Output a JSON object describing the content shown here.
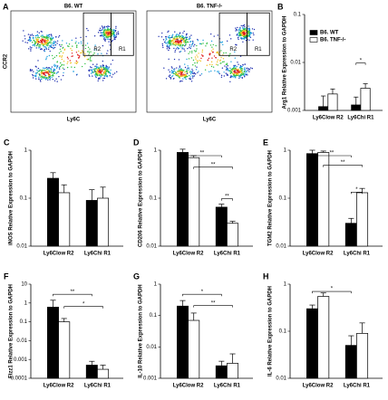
{
  "panel_a": {
    "label": "A",
    "plots": [
      {
        "title": "B6. WT"
      },
      {
        "title": "B6. TNF-/-"
      }
    ],
    "y_label": "CCR2",
    "x_label": "Ly6C",
    "gates": [
      "R2",
      "R1"
    ]
  },
  "chart_data": [
    {
      "type": "bar",
      "panel": "B",
      "y_label": "Arg1 Relative Expression to GAPDH",
      "categories": [
        "Ly6Clow R2",
        "Ly6Chi R1"
      ],
      "series": [
        {
          "name": "B6. WT",
          "color": "#000000",
          "values": [
            0.0012,
            0.0013
          ],
          "errors": [
            0.0008,
            0.0006
          ]
        },
        {
          "name": "B6. TNF-/-",
          "color": "#ffffff",
          "values": [
            0.0022,
            0.0029
          ],
          "errors": [
            0.0006,
            0.0007
          ]
        }
      ],
      "ylim": [
        0.001,
        0.1
      ],
      "yticks": [
        0.001,
        0.01,
        0.1
      ],
      "log_scale": true,
      "legend": "upper left",
      "annotations": [
        "*"
      ]
    },
    {
      "type": "bar",
      "panel": "C",
      "y_label": "iNOS Relative Expression to GAPDH",
      "categories": [
        "Ly6Clow R2",
        "Ly6Chi R1"
      ],
      "series": [
        {
          "color": "#000000",
          "values": [
            0.26,
            0.09
          ],
          "errors": [
            0.08,
            0.06
          ]
        },
        {
          "color": "#ffffff",
          "values": [
            0.13,
            0.1
          ],
          "errors": [
            0.06,
            0.07
          ]
        }
      ],
      "ylim": [
        0.01,
        1
      ],
      "yticks": [
        0.01,
        0.1,
        1
      ],
      "log_scale": true,
      "annotations": []
    },
    {
      "type": "bar",
      "panel": "D",
      "y_label": "CD206 Relative Expression to GAPDH",
      "categories": [
        "Ly6Clow R2",
        "Ly6Chi R1"
      ],
      "series": [
        {
          "color": "#000000",
          "values": [
            0.9,
            0.065
          ],
          "errors": [
            0.15,
            0.01
          ]
        },
        {
          "color": "#ffffff",
          "values": [
            0.7,
            0.03
          ],
          "errors": [
            0.07,
            0.003
          ]
        }
      ],
      "ylim": [
        0.01,
        1
      ],
      "yticks": [
        0.01,
        0.1,
        1
      ],
      "log_scale": true,
      "annotations": [
        "**",
        "**",
        "**"
      ]
    },
    {
      "type": "bar",
      "panel": "E",
      "y_label": "TGM2 Relative Expression to GAPDH",
      "categories": [
        "Ly6Clow R2",
        "Ly6Chi R1"
      ],
      "series": [
        {
          "color": "#000000",
          "values": [
            0.85,
            0.03
          ],
          "errors": [
            0.15,
            0.008
          ]
        },
        {
          "color": "#ffffff",
          "values": [
            0.9,
            0.13
          ],
          "errors": [
            0.06,
            0.03
          ]
        }
      ],
      "ylim": [
        0.01,
        1
      ],
      "yticks": [
        0.01,
        0.1,
        1
      ],
      "log_scale": true,
      "annotations": [
        "**",
        "**",
        "*"
      ]
    },
    {
      "type": "bar",
      "panel": "F",
      "y_label": "Fizz1 Relative Expression to GAPDH",
      "categories": [
        "Ly6Clow R2",
        "Ly6Chi R1"
      ],
      "series": [
        {
          "color": "#000000",
          "values": [
            0.6,
            0.0005
          ],
          "errors": [
            0.8,
            0.0003
          ]
        },
        {
          "color": "#ffffff",
          "values": [
            0.1,
            0.0003
          ],
          "errors": [
            0.05,
            0.0002
          ]
        }
      ],
      "ylim": [
        0.0001,
        10
      ],
      "yticks": [
        0.0001,
        0.001,
        0.01,
        0.1,
        1,
        10
      ],
      "log_scale": true,
      "annotations": [
        "**",
        "*"
      ]
    },
    {
      "type": "bar",
      "panel": "G",
      "y_label": "IL-10 Relative Expression to GAPDH",
      "categories": [
        "Ly6Clow R2",
        "Ly6Chi R1"
      ],
      "series": [
        {
          "color": "#000000",
          "values": [
            0.2,
            0.0025
          ],
          "errors": [
            0.1,
            0.001
          ]
        },
        {
          "color": "#ffffff",
          "values": [
            0.07,
            0.003
          ],
          "errors": [
            0.05,
            0.003
          ]
        }
      ],
      "ylim": [
        0.001,
        1
      ],
      "yticks": [
        0.001,
        0.01,
        0.1,
        1
      ],
      "log_scale": true,
      "annotations": [
        "*",
        "**"
      ]
    },
    {
      "type": "bar",
      "panel": "H",
      "y_label": "IL-6 Relative Expression to GAPDH",
      "categories": [
        "Ly6Clow R2",
        "Ly6Chi R1"
      ],
      "series": [
        {
          "color": "#000000",
          "values": [
            0.3,
            0.05
          ],
          "errors": [
            0.06,
            0.03
          ]
        },
        {
          "color": "#ffffff",
          "values": [
            0.55,
            0.09
          ],
          "errors": [
            0.1,
            0.06
          ]
        }
      ],
      "ylim": [
        0.01,
        1
      ],
      "yticks": [
        0.01,
        0.1,
        1
      ],
      "log_scale": true,
      "annotations": [
        "*"
      ]
    }
  ]
}
